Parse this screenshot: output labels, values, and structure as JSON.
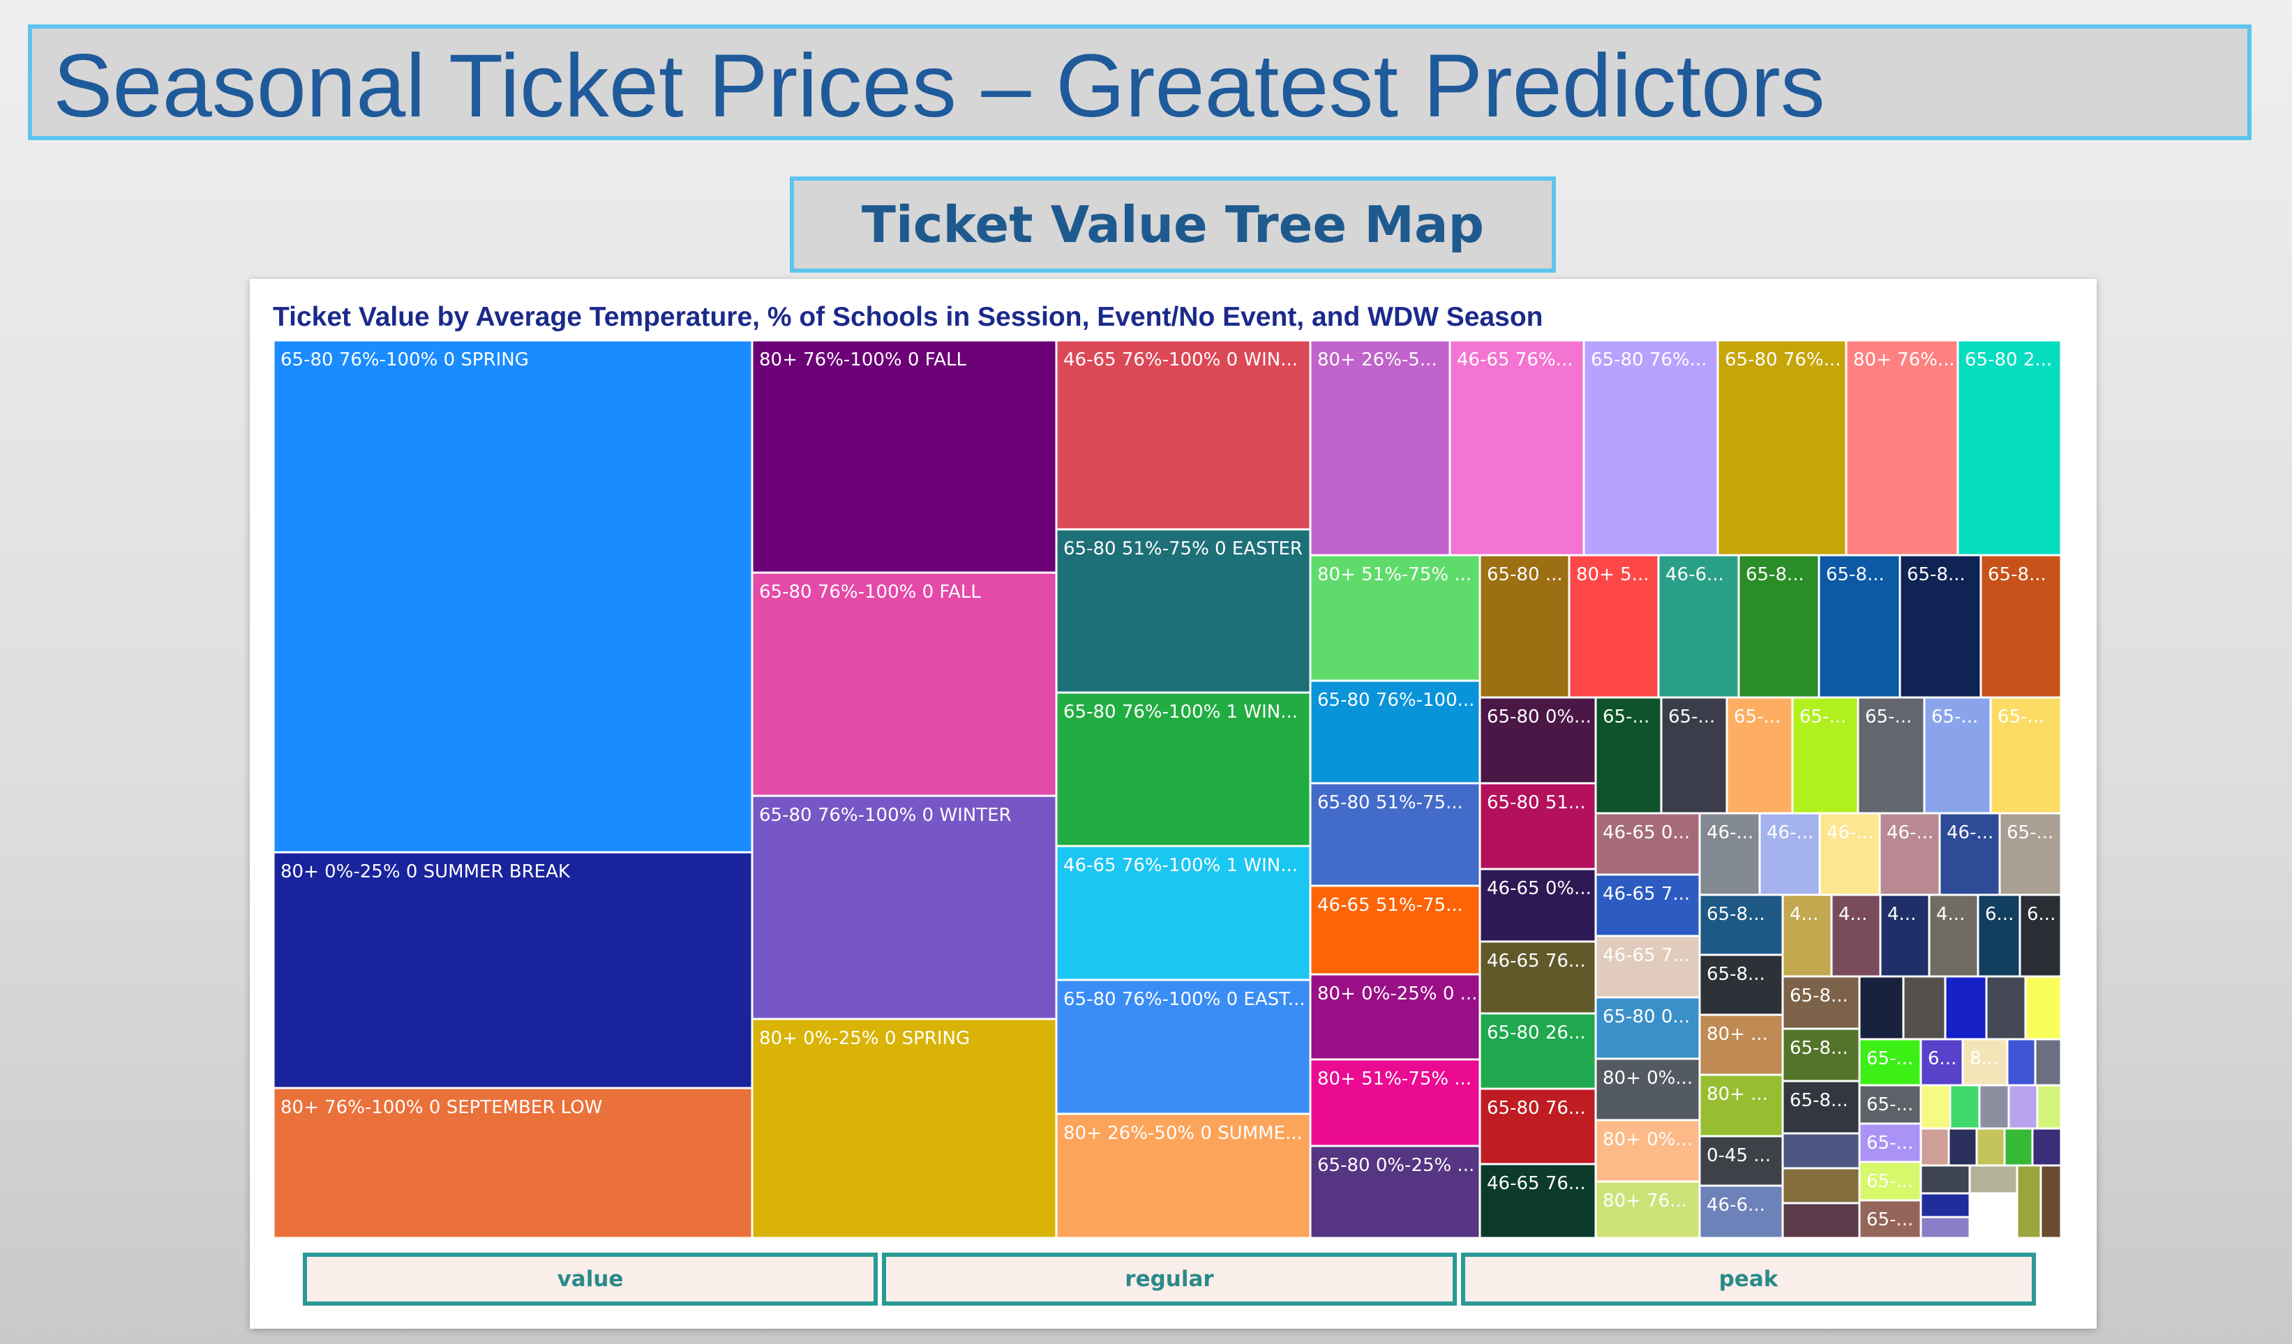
{
  "header": {
    "title": "Seasonal Ticket Prices – Greatest Predictors",
    "subtitle": "Ticket Value Tree Map"
  },
  "chart_data": {
    "type": "treemap",
    "title": "Ticket Value by Average Temperature, % of Schools in Session, Event/No Event, and WDW Season",
    "tiles": [
      {
        "label": "65-80 76%-100% 0 SPRING",
        "color": "#1a8cff"
      },
      {
        "label": "80+ 0%-25% 0 SUMMER BREAK",
        "color": "#19249c"
      },
      {
        "label": "80+ 76%-100% 0 SEPTEMBER LOW",
        "color": "#eb713b"
      },
      {
        "label": "80+ 76%-100% 0 FALL",
        "color": "#6b0077"
      },
      {
        "label": "65-80 76%-100% 0 FALL",
        "color": "#e44aa8"
      },
      {
        "label": "65-80 76%-100% 0 WINTER",
        "color": "#7757c5"
      },
      {
        "label": "80+ 0%-25% 0 SPRING",
        "color": "#d9b406"
      },
      {
        "label": "46-65 76%-100% 0 WIN...",
        "color": "#dc4956"
      },
      {
        "label": "65-80 51%-75% 0 EASTER",
        "color": "#1e7078"
      },
      {
        "label": "65-80 76%-100% 1 WIN...",
        "color": "#22ad43"
      },
      {
        "label": "46-65 76%-100% 1 WIN...",
        "color": "#1bc6f2"
      },
      {
        "label": "65-80 76%-100% 0 EAST...",
        "color": "#3a8df5"
      },
      {
        "label": "80+ 26%-50% 0 SUMME...",
        "color": "#fca45a"
      },
      {
        "label": "80+ 26%-5...",
        "color": "#c063cc"
      },
      {
        "label": "46-65 76%...",
        "color": "#f474d2"
      },
      {
        "label": "65-80 76%...",
        "color": "#b6a2ff"
      },
      {
        "label": "65-80 76%...",
        "color": "#c6a508"
      },
      {
        "label": "80+ 76%...",
        "color": "#fe8181"
      },
      {
        "label": "65-80 2...",
        "color": "#06ddc0"
      },
      {
        "label": "80+ 51%-75% ...",
        "color": "#5fdb6b"
      },
      {
        "label": "65-80 76%-100...",
        "color": "#0994da"
      },
      {
        "label": "65-80 51%-75...",
        "color": "#436bc9"
      },
      {
        "label": "46-65 51%-75...",
        "color": "#fc6406"
      },
      {
        "label": "80+ 0%-25% 0 ...",
        "color": "#9a0f86"
      },
      {
        "label": "80+ 51%-75% ...",
        "color": "#eb0a92"
      },
      {
        "label": "65-80 0%-25% ...",
        "color": "#563582"
      },
      {
        "label": "65-80 ...",
        "color": "#9c7012"
      },
      {
        "label": "80+ 5...",
        "color": "#fe4848"
      },
      {
        "label": "46-6...",
        "color": "#2a9f87"
      },
      {
        "label": "65-8...",
        "color": "#2b8d27"
      },
      {
        "label": "65-8...",
        "color": "#0c59a5"
      },
      {
        "label": "65-8...",
        "color": "#0f2454"
      },
      {
        "label": "65-8...",
        "color": "#c8521a"
      },
      {
        "label": "65-80 0%...",
        "color": "#4a1747"
      },
      {
        "label": "65-80 51...",
        "color": "#b4115d"
      },
      {
        "label": "46-65 0%...",
        "color": "#2f1955"
      },
      {
        "label": "46-65 76...",
        "color": "#62592b"
      },
      {
        "label": "65-80 26...",
        "color": "#1fa84e"
      },
      {
        "label": "65-80 76...",
        "color": "#bf1d23"
      },
      {
        "label": "46-65 76...",
        "color": "#0c3b2d"
      },
      {
        "label": "65-...",
        "color": "#0f532a"
      },
      {
        "label": "65-...",
        "color": "#3c3d4a"
      },
      {
        "label": "65-...",
        "color": "#feae62"
      },
      {
        "label": "65-...",
        "color": "#b0f01f"
      },
      {
        "label": "65-...",
        "color": "#63666f"
      },
      {
        "label": "65-...",
        "color": "#8aa4ec"
      },
      {
        "label": "65-...",
        "color": "#fddc65"
      },
      {
        "label": "46-65 0...",
        "color": "#a66b7b"
      },
      {
        "label": "46-65 7...",
        "color": "#2c5bc1"
      },
      {
        "label": "46-65 7...",
        "color": "#e0cbbd"
      },
      {
        "label": "65-80 0...",
        "color": "#3a90c9"
      },
      {
        "label": "80+ 0%...",
        "color": "#535a62"
      },
      {
        "label": "80+ 0%...",
        "color": "#fbba87"
      },
      {
        "label": "80+ 76...",
        "color": "#cde37a"
      },
      {
        "label": "46-...",
        "color": "#838992"
      },
      {
        "label": "46-...",
        "color": "#a4b3ee"
      },
      {
        "label": "46-...",
        "color": "#fde68f"
      },
      {
        "label": "46-...",
        "color": "#b98993"
      },
      {
        "label": "46-...",
        "color": "#2d4b96"
      },
      {
        "label": "65-...",
        "color": "#a99f93"
      },
      {
        "label": "65-8...",
        "color": "#1e5985"
      },
      {
        "label": "65-8...",
        "color": "#2d3138"
      },
      {
        "label": "80+ ...",
        "color": "#c08a54"
      },
      {
        "label": "80+ ...",
        "color": "#97be31"
      },
      {
        "label": "0-45 ...",
        "color": "#3e4248"
      },
      {
        "label": "46-6...",
        "color": "#6d82b9"
      },
      {
        "label": "4...",
        "color": "#c2a84e"
      },
      {
        "label": "4...",
        "color": "#7a4b5c"
      },
      {
        "label": "4...",
        "color": "#1f3068"
      },
      {
        "label": "4...",
        "color": "#716c62"
      },
      {
        "label": "6...",
        "color": "#123e5f"
      },
      {
        "label": "6...",
        "color": "#2a2d34"
      },
      {
        "label": "65-8...",
        "color": "#7c6248"
      },
      {
        "label": "65-8...",
        "color": "#53752b"
      },
      {
        "label": "65-8...",
        "color": "#333740"
      },
      {
        "label": "",
        "color": "#4b5780"
      },
      {
        "label": "",
        "color": "#836e3c"
      },
      {
        "label": "",
        "color": "#5b3b49"
      },
      {
        "label": "",
        "color": "#18213d"
      },
      {
        "label": "",
        "color": "#55504e"
      },
      {
        "label": "",
        "color": "#1520c7"
      },
      {
        "label": "",
        "color": "#444955"
      },
      {
        "label": "",
        "color": "#f9fe5a"
      },
      {
        "label": "65-...",
        "color": "#3cf016"
      },
      {
        "label": "6...",
        "color": "#5742ca"
      },
      {
        "label": "8...",
        "color": "#f4e5b8"
      },
      {
        "label": "",
        "color": "#3e55d8"
      },
      {
        "label": "",
        "color": "#6b6f82"
      },
      {
        "label": "65-...",
        "color": "#5d6168"
      },
      {
        "label": "65-...",
        "color": "#aa93f5"
      },
      {
        "label": "65-...",
        "color": "#d7f86b"
      },
      {
        "label": "65-...",
        "color": "#946559"
      },
      {
        "label": "",
        "color": "#f6fa80"
      },
      {
        "label": "",
        "color": "#40d86a"
      },
      {
        "label": "",
        "color": "#8c8fa0"
      },
      {
        "label": "",
        "color": "#b8a3ec"
      },
      {
        "label": "",
        "color": "#d4f57a"
      },
      {
        "label": "",
        "color": "#cf9e96"
      },
      {
        "label": "",
        "color": "#2a2f5b"
      },
      {
        "label": "",
        "color": "#c4c45a"
      },
      {
        "label": "",
        "color": "#36b936"
      },
      {
        "label": "",
        "color": "#3a2d7a"
      },
      {
        "label": "",
        "color": "#3f4452"
      },
      {
        "label": "",
        "color": "#b5b29c"
      },
      {
        "label": "",
        "color": "#9aa63c"
      },
      {
        "label": "",
        "color": "#6b4a30"
      },
      {
        "label": "",
        "color": "#1f2e9c"
      },
      {
        "label": "",
        "color": "#8b7dc8"
      }
    ]
  },
  "buttons": [
    {
      "label": "value"
    },
    {
      "label": "regular"
    },
    {
      "label": "peak"
    }
  ]
}
